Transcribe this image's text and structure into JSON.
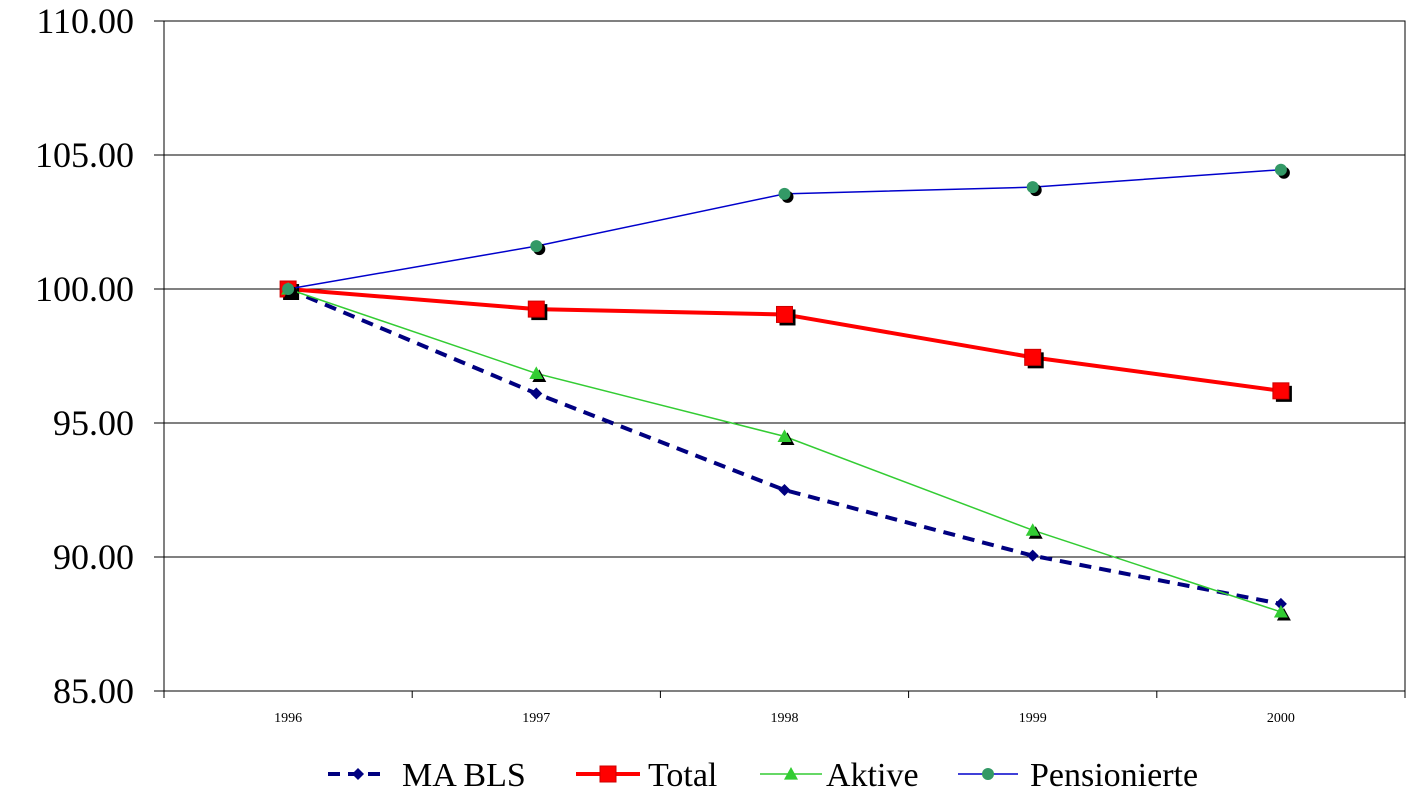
{
  "chart_data": {
    "type": "line",
    "title": "",
    "xlabel": "",
    "ylabel": "",
    "categories": [
      "1996",
      "1997",
      "1998",
      "1999",
      "2000"
    ],
    "ylim": [
      85,
      110
    ],
    "yticks": [
      "85.00",
      "90.00",
      "95.00",
      "100.00",
      "105.00",
      "110.00"
    ],
    "grid": "horizontal",
    "legend_position": "bottom",
    "series": [
      {
        "name": "MA BLS",
        "values": [
          100.0,
          96.1,
          92.5,
          90.05,
          88.25
        ],
        "color": "#000080",
        "marker": "diamond",
        "line_style": "dashed"
      },
      {
        "name": "Total",
        "values": [
          100.0,
          99.25,
          99.05,
          97.45,
          96.2
        ],
        "color": "#ff0000",
        "marker": "square",
        "line_style": "solid-thick"
      },
      {
        "name": "Aktive",
        "values": [
          100.0,
          96.85,
          94.5,
          91.0,
          87.95
        ],
        "color": "#33cc33",
        "marker": "triangle",
        "line_style": "solid"
      },
      {
        "name": "Pensionierte",
        "values": [
          100.0,
          101.6,
          103.55,
          103.8,
          104.45
        ],
        "color": "#0000cc",
        "marker": "circle",
        "marker_color": "#339966",
        "line_style": "solid"
      }
    ]
  }
}
